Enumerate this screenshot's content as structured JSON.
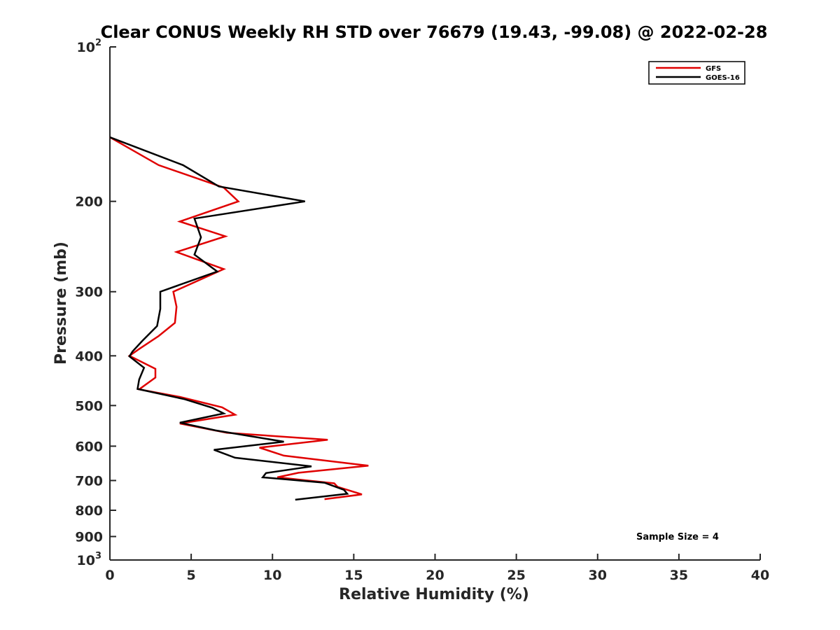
{
  "chart_data": {
    "type": "line",
    "title": "Clear CONUS Weekly RH STD over 76679 (19.43, -99.08) @ 2022-02-28",
    "xlabel": "Relative Humidity (%)",
    "ylabel": "Pressure (mb)",
    "xlim": [
      0,
      40
    ],
    "ylim": [
      100,
      1000
    ],
    "y_scale": "log",
    "y_reversed": true,
    "x_ticks": [
      "0",
      "5",
      "10",
      "15",
      "20",
      "25",
      "30",
      "35",
      "40"
    ],
    "y_ticks": [
      {
        "value": 100,
        "label": "10",
        "exp": "2"
      },
      {
        "value": 200,
        "label": "200"
      },
      {
        "value": 300,
        "label": "300"
      },
      {
        "value": 400,
        "label": "400"
      },
      {
        "value": 500,
        "label": "500"
      },
      {
        "value": 600,
        "label": "600"
      },
      {
        "value": 700,
        "label": "700"
      },
      {
        "value": 800,
        "label": "800"
      },
      {
        "value": 900,
        "label": "900"
      },
      {
        "value": 1000,
        "label": "10",
        "exp": "3"
      }
    ],
    "grid": false,
    "legend_position": "top-right",
    "annotation": "Sample Size = 4",
    "series": [
      {
        "name": "GFS",
        "color": "#e00000",
        "points": [
          [
            0.0,
            150
          ],
          [
            3.0,
            170
          ],
          [
            7.0,
            188
          ],
          [
            7.9,
            200
          ],
          [
            4.3,
            219
          ],
          [
            7.1,
            234
          ],
          [
            4.1,
            251
          ],
          [
            7.0,
            271
          ],
          [
            3.9,
            300
          ],
          [
            4.1,
            321
          ],
          [
            4.0,
            345
          ],
          [
            3.0,
            366
          ],
          [
            1.8,
            388
          ],
          [
            1.2,
            400
          ],
          [
            2.8,
            424
          ],
          [
            2.8,
            441
          ],
          [
            1.8,
            465
          ],
          [
            4.3,
            481
          ],
          [
            6.9,
            504
          ],
          [
            7.7,
            521
          ],
          [
            4.3,
            542
          ],
          [
            7.2,
            565
          ],
          [
            13.4,
            583
          ],
          [
            9.2,
            604
          ],
          [
            10.7,
            626
          ],
          [
            15.9,
            655
          ],
          [
            11.6,
            676
          ],
          [
            10.3,
            690
          ],
          [
            13.8,
            709
          ],
          [
            14.0,
            720
          ],
          [
            15.5,
            745
          ],
          [
            13.2,
            761
          ]
        ]
      },
      {
        "name": "GOES-16",
        "color": "#000000",
        "points": [
          [
            0.0,
            150
          ],
          [
            4.5,
            170
          ],
          [
            6.7,
            187
          ],
          [
            12.0,
            200
          ],
          [
            5.2,
            216
          ],
          [
            5.6,
            235
          ],
          [
            5.2,
            254
          ],
          [
            6.6,
            274
          ],
          [
            3.1,
            300
          ],
          [
            3.1,
            324
          ],
          [
            2.9,
            350
          ],
          [
            2.0,
            374
          ],
          [
            1.4,
            392
          ],
          [
            1.2,
            401
          ],
          [
            2.1,
            422
          ],
          [
            1.8,
            445
          ],
          [
            1.7,
            464
          ],
          [
            4.6,
            486
          ],
          [
            6.3,
            505
          ],
          [
            7.0,
            518
          ],
          [
            4.3,
            540
          ],
          [
            6.5,
            559
          ],
          [
            10.7,
            588
          ],
          [
            6.4,
            610
          ],
          [
            7.7,
            632
          ],
          [
            12.4,
            657
          ],
          [
            9.6,
            677
          ],
          [
            9.4,
            690
          ],
          [
            13.2,
            707
          ],
          [
            14.4,
            730
          ],
          [
            14.6,
            743
          ],
          [
            11.4,
            763
          ]
        ]
      }
    ]
  }
}
